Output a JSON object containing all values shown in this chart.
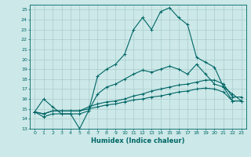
{
  "title": "",
  "xlabel": "Humidex (Indice chaleur)",
  "ylabel": "",
  "xlim": [
    -0.5,
    23.5
  ],
  "ylim": [
    13,
    25.5
  ],
  "yticks": [
    13,
    14,
    15,
    16,
    17,
    18,
    19,
    20,
    21,
    22,
    23,
    24,
    25
  ],
  "xticks": [
    0,
    1,
    2,
    3,
    4,
    5,
    6,
    7,
    8,
    9,
    10,
    11,
    12,
    13,
    14,
    15,
    16,
    17,
    18,
    19,
    20,
    21,
    22,
    23
  ],
  "bg_color": "#cce8e8",
  "grid_color": "#aacccc",
  "line_color": "#006666",
  "line_width": 0.8,
  "marker": "+",
  "marker_size": 3,
  "series": [
    [
      14.7,
      14.2,
      14.5,
      14.5,
      14.5,
      13.0,
      14.8,
      18.3,
      19.0,
      19.5,
      20.5,
      23.0,
      24.2,
      23.0,
      24.8,
      25.2,
      24.2,
      23.5,
      20.2,
      19.7,
      19.2,
      17.2,
      15.8,
      15.8
    ],
    [
      14.7,
      14.5,
      14.8,
      14.8,
      14.8,
      14.8,
      15.2,
      15.5,
      15.7,
      15.8,
      16.0,
      16.3,
      16.5,
      16.8,
      17.0,
      17.2,
      17.4,
      17.5,
      17.7,
      17.9,
      17.9,
      17.5,
      16.2,
      16.2
    ],
    [
      14.7,
      14.5,
      14.8,
      14.8,
      14.8,
      14.8,
      15.0,
      15.2,
      15.4,
      15.5,
      15.7,
      15.9,
      16.0,
      16.2,
      16.3,
      16.5,
      16.7,
      16.8,
      17.0,
      17.1,
      17.0,
      16.7,
      15.8,
      15.8
    ],
    [
      14.7,
      16.0,
      15.2,
      14.5,
      14.5,
      14.5,
      14.8,
      16.5,
      17.2,
      17.5,
      18.0,
      18.5,
      18.9,
      18.7,
      19.0,
      19.3,
      19.0,
      18.5,
      19.5,
      18.5,
      17.5,
      17.2,
      16.5,
      15.8
    ]
  ]
}
